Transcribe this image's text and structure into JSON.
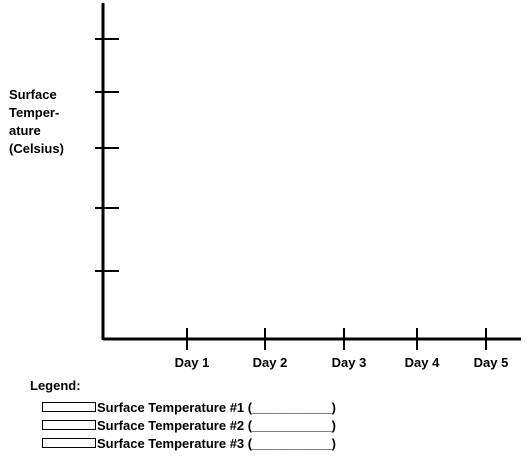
{
  "chart_data": {
    "type": "line",
    "title": "",
    "ylabel_lines": [
      "Surface",
      "Temper-",
      "ature",
      "(Celsius)"
    ],
    "xlabel": "",
    "categories": [
      "Day 1",
      "Day 2",
      "Day 3",
      "Day 4",
      "Day 5"
    ],
    "y_tick_count": 5,
    "grid": false,
    "legend": {
      "title": "Legend:",
      "placement": "bottom-left",
      "entries": [
        "Surface Temperature #1 (___________)",
        "Surface Temperature #2 (___________)",
        "Surface Temperature #3 (___________)"
      ]
    },
    "axis_color": "#000000"
  }
}
